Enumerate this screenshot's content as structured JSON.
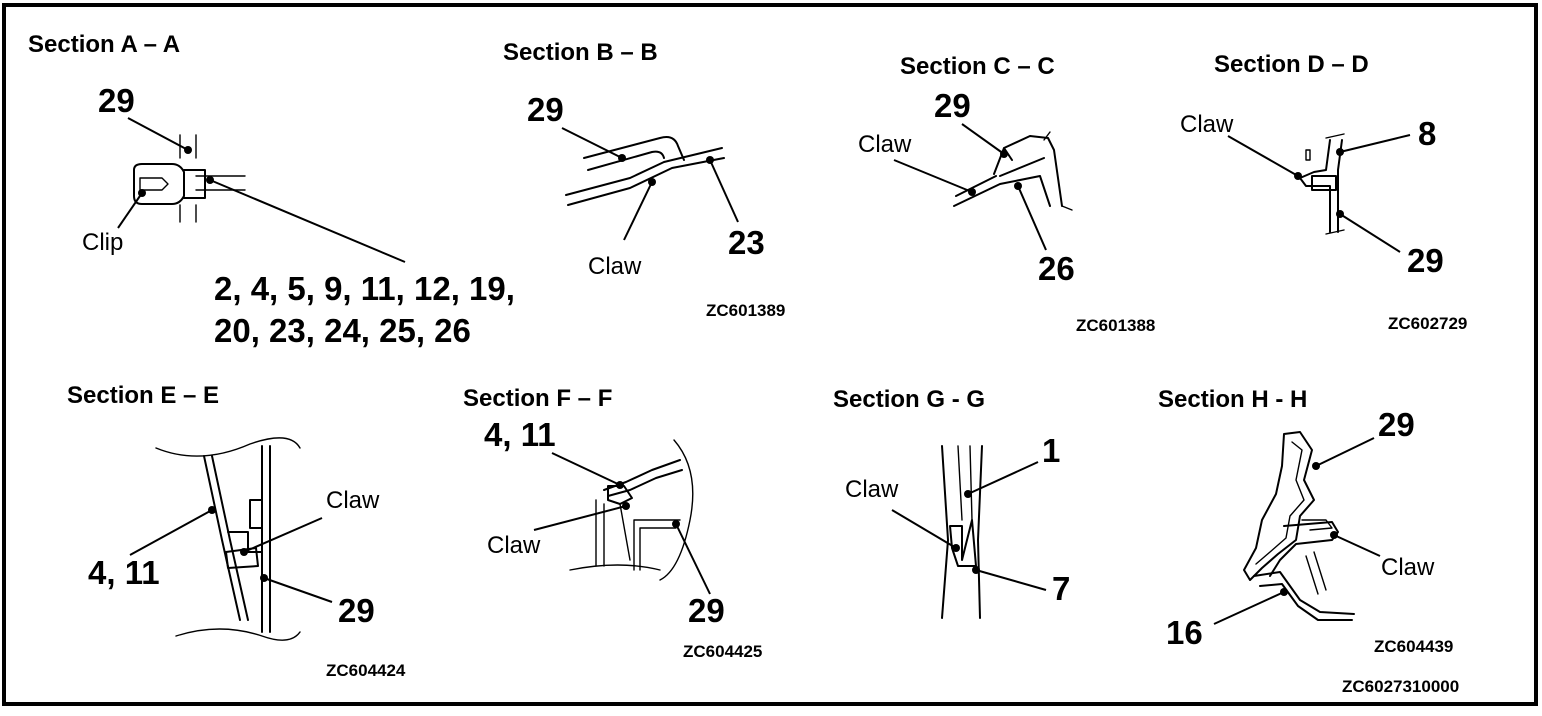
{
  "sections": [
    {
      "id": "a",
      "title": "Section A – A",
      "labels": [
        "29",
        "Clip",
        "2, 4, 5, 9, 11, 12, 19,",
        "20, 23, 24, 25, 26"
      ]
    },
    {
      "id": "b",
      "title": "Section B – B",
      "labels": [
        "29",
        "Claw",
        "23"
      ],
      "code": "ZC601389"
    },
    {
      "id": "c",
      "title": "Section C – C",
      "labels": [
        "29",
        "Claw",
        "26"
      ],
      "code": "ZC601388"
    },
    {
      "id": "d",
      "title": "Section D – D",
      "labels": [
        "Claw",
        "8",
        "29"
      ],
      "code": "ZC602729"
    },
    {
      "id": "e",
      "title": "Section E – E",
      "labels": [
        "Claw",
        "4, 11",
        "29"
      ],
      "code": "ZC604424"
    },
    {
      "id": "f",
      "title": "Section F – F",
      "labels": [
        "4, 11",
        "Claw",
        "29"
      ],
      "code": "ZC604425"
    },
    {
      "id": "g",
      "title": "Section G - G",
      "labels": [
        "Claw",
        "1",
        "7"
      ]
    },
    {
      "id": "h",
      "title": "Section H - H",
      "labels": [
        "29",
        "Claw",
        "16"
      ],
      "code": "ZC604439"
    }
  ],
  "figure_code": "ZC6027310000"
}
